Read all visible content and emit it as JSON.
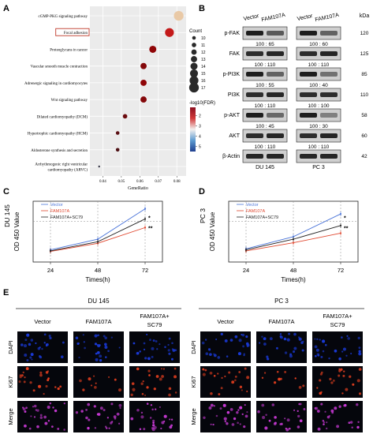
{
  "panels": {
    "A": "A",
    "B": "B",
    "C": "C",
    "D": "D",
    "E": "E"
  },
  "panelA": {
    "chart_data": {
      "type": "scatter",
      "xlabel": "GeneRatio",
      "xticks": [
        0.04,
        0.05,
        0.06,
        0.07,
        0.08
      ],
      "xlim": [
        0.033,
        0.085
      ],
      "pathways": [
        "cGMP-PKG signaling pathway",
        "Focal adhesion",
        "Proteoglycans in cancer",
        "Vascular smooth muscle contraction",
        "Adrenergic signaling in cardiomyocytes",
        "Wnt signaling pathway",
        "Dilated cardiomyopathy (DCM)",
        "Hypertrophic cardiomyopathy (HCM)",
        "Aldosterone synthesis and secretion",
        "Arrhythmogenic right ventricular cardiomyopathy (ARVC)"
      ],
      "pathway_lines": [
        [
          "cGMP-PKG signaling pathway"
        ],
        [
          "Focal adhesion"
        ],
        [
          "Proteoglycans in cancer"
        ],
        [
          "Vascular smooth muscle contraction"
        ],
        [
          "Adrenergic signaling in cardiomyocytes"
        ],
        [
          "Wnt signaling pathway"
        ],
        [
          "Dilated cardiomyopathy (DCM)"
        ],
        [
          "Hypertrophic cardiomyopathy (HCM)"
        ],
        [
          "Aldosterone synthesis and secretion"
        ],
        [
          "Arrhythmogenic right ventricular",
          "cardiomyopathy (ARVC)"
        ]
      ],
      "gene_ratio": [
        0.081,
        0.076,
        0.067,
        0.062,
        0.062,
        0.062,
        0.052,
        0.048,
        0.048,
        0.038
      ],
      "count": [
        17,
        16,
        14,
        13,
        13,
        13,
        11,
        10,
        10,
        8
      ],
      "neg_log10_fdr": [
        0.5,
        3.6,
        3.9,
        3.7,
        3.9,
        3.7,
        3.3,
        3.0,
        2.8,
        1.8
      ],
      "highlighted": "Focal adhesion",
      "legend_count_title": "Count",
      "legend_count_values": [
        10,
        11,
        12,
        13,
        14,
        15,
        16,
        17
      ],
      "legend_color_title": "-log10(FDR)",
      "legend_color_ticks": [
        2,
        3,
        4,
        5
      ],
      "legend_color_range": [
        1.2,
        5.5
      ]
    }
  },
  "panelB": {
    "groups": [
      {
        "label": "DU 145",
        "lanes": [
          "Vector",
          "FAM107A"
        ]
      },
      {
        "label": "PC 3",
        "lanes": [
          "Vector",
          "FAM107A"
        ]
      }
    ],
    "kda_title": "kDa",
    "proteins": [
      {
        "name": "p-FAK",
        "kda": "120",
        "q1": "100 : 65",
        "q2": "100 : 60",
        "i": [
          1,
          0.6,
          1,
          0.55
        ]
      },
      {
        "name": "FAK",
        "kda": "125",
        "q1": "100 : 110",
        "q2": "100 : 110",
        "i": [
          0.9,
          0.95,
          0.9,
          0.95
        ]
      },
      {
        "name": "p-PI3K",
        "kda": "85",
        "q1": "100 : 55",
        "q2": "100 : 40",
        "i": [
          1,
          0.55,
          1,
          0.45
        ]
      },
      {
        "name": "PI3K",
        "kda": "110",
        "q1": "100 : 110",
        "q2": "100 : 100",
        "i": [
          0.9,
          0.95,
          0.9,
          0.9
        ]
      },
      {
        "name": "p-AKT",
        "kda": "58",
        "q1": "100 : 45",
        "q2": "100 : 30",
        "i": [
          1,
          0.5,
          1,
          0.35
        ]
      },
      {
        "name": "AKT",
        "kda": "60",
        "q1": "100 : 110",
        "q2": "100 : 110",
        "i": [
          0.9,
          0.95,
          0.9,
          0.95
        ]
      },
      {
        "name": "β-Actin",
        "kda": "42",
        "q1": "",
        "q2": "",
        "i": [
          0.95,
          0.95,
          0.95,
          0.95
        ]
      }
    ]
  },
  "panelC": {
    "chart_data": {
      "type": "line",
      "title": "DU 145",
      "xlabel": "Times(h)",
      "ylabel": "OD 450 Value",
      "x": [
        24,
        48,
        72
      ],
      "ylim": [
        0,
        1.2
      ],
      "yticks": [
        "0.0",
        "0.2",
        "0.4",
        "0.6",
        "0.8",
        "1.0",
        "1.2"
      ],
      "series": [
        {
          "name": "Vector",
          "color": "#4a74d9",
          "values": [
            0.24,
            0.45,
            1.05
          ]
        },
        {
          "name": "FAM107A",
          "color": "#e0472f",
          "values": [
            0.21,
            0.37,
            0.68
          ]
        },
        {
          "name": "FAM107A+SC79",
          "color": "#222222",
          "values": [
            0.22,
            0.4,
            0.85
          ]
        }
      ],
      "annotations": [
        "*",
        "**"
      ]
    }
  },
  "panelD": {
    "chart_data": {
      "type": "line",
      "title": "PC 3",
      "xlabel": "Times(h)",
      "ylabel": "OD 450 Value",
      "x": [
        24,
        48,
        72
      ],
      "ylim": [
        0,
        1.2
      ],
      "yticks": [
        "0.0",
        "0.2",
        "0.4",
        "0.6",
        "0.8",
        "1.0",
        "1.2"
      ],
      "series": [
        {
          "name": "Vector",
          "color": "#4a74d9",
          "values": [
            0.26,
            0.5,
            0.95
          ]
        },
        {
          "name": "FAM107A",
          "color": "#e0472f",
          "values": [
            0.22,
            0.38,
            0.57
          ]
        },
        {
          "name": "FAM107A+SC79",
          "color": "#222222",
          "values": [
            0.24,
            0.45,
            0.72
          ]
        }
      ],
      "annotations": [
        "*",
        "**"
      ]
    }
  },
  "panelE": {
    "cell_lines": [
      "DU 145",
      "PC 3"
    ],
    "columns": [
      "Vector",
      "FAM107A"
    ],
    "combo_line1": "FAM107A+",
    "combo_line2": "SC79",
    "rows": [
      "DAPI",
      "Ki67",
      "Merge"
    ],
    "colors": {
      "DAPI": "#1a3ad8",
      "Ki67": "#e8401f",
      "Merge": "#c93ad6"
    }
  }
}
